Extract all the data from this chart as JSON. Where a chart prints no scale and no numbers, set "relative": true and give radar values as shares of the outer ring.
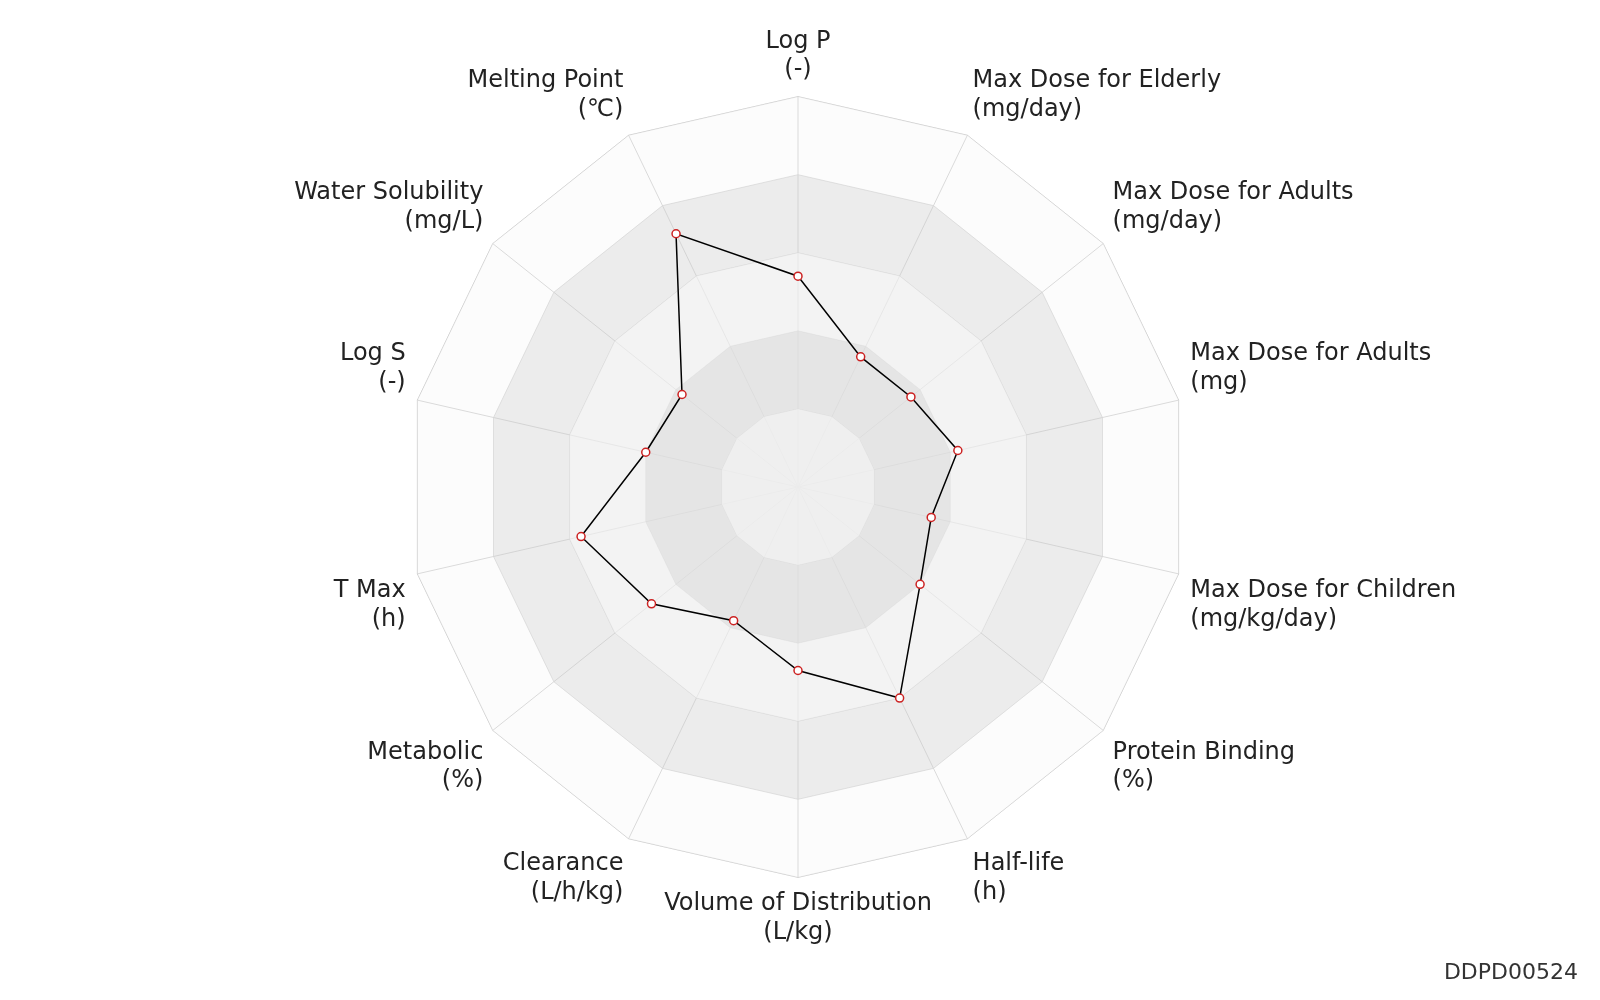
{
  "chart_data": {
    "type": "radar",
    "relative": true,
    "categories": [
      "Log P\n(-)",
      "Max Dose for Elderly\n(mg/day)",
      "Max Dose for Adults\n(mg/day)",
      "Max Dose for Adults\n(mg)",
      "Max Dose for Children\n(mg/kg/day)",
      "Protein Binding\n(%)",
      "Half-life\n(h)",
      "Volume of Distribution\n(L/kg)",
      "Clearance\n(L/h/kg)",
      "Metabolic\n(%)",
      "T Max\n(h)",
      "Log S\n(-)",
      "Water Solubility\n(mg/L)",
      "Melting Point\n(℃)"
    ],
    "series": [
      {
        "color": "#000000",
        "values": [
          0.54,
          0.37,
          0.37,
          0.42,
          0.35,
          0.4,
          0.6,
          0.47,
          0.38,
          0.48,
          0.57,
          0.4,
          0.38,
          0.72
        ]
      }
    ],
    "marker": "circle",
    "legend": false,
    "annotations": [
      "DDPD00524"
    ]
  }
}
